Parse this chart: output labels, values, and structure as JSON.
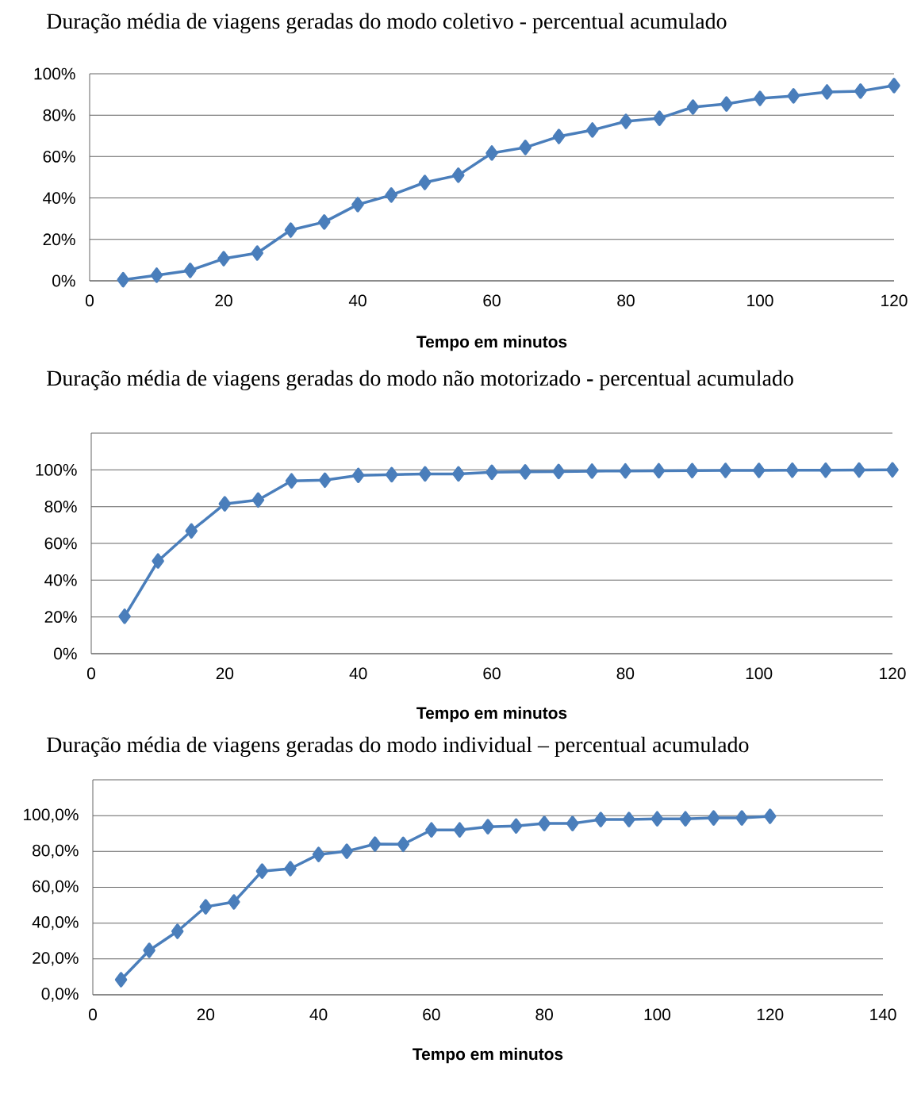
{
  "chart_data": [
    {
      "type": "line",
      "title": "Duração média de viagens geradas do modo coletivo - percentual acumulado",
      "xlabel": "Tempo em minutos",
      "color": "#4a7ebb",
      "marker": "diamond",
      "grid": "y",
      "x": [
        5,
        10,
        15,
        20,
        25,
        30,
        35,
        40,
        45,
        50,
        55,
        60,
        65,
        70,
        75,
        80,
        85,
        90,
        95,
        100,
        105,
        110,
        115,
        120
      ],
      "values": [
        0.5,
        2.7,
        5,
        10.7,
        13.4,
        24.5,
        28.4,
        36.8,
        41.4,
        47.5,
        51,
        61.7,
        64.4,
        69.7,
        72.8,
        77,
        78.5,
        83.9,
        85.4,
        88.1,
        89.3,
        91.2,
        91.6,
        94.3
      ],
      "xlim": [
        0,
        120
      ],
      "xticks": [
        0,
        20,
        40,
        60,
        80,
        100,
        120
      ],
      "ylim": [
        0,
        100
      ],
      "yticks": [
        {
          "value": 0,
          "label": "0%"
        },
        {
          "value": 20,
          "label": "20%"
        },
        {
          "value": 40,
          "label": "40%"
        },
        {
          "value": 60,
          "label": "60%"
        },
        {
          "value": 80,
          "label": "80%"
        },
        {
          "value": 100,
          "label": "100%"
        }
      ]
    },
    {
      "type": "line",
      "title": "Duração média de viagens geradas do modo não motorizado **-** percentual acumulado",
      "xlabel": "Tempo em minutos",
      "color": "#4a7ebb",
      "marker": "diamond",
      "grid": "y",
      "x": [
        5,
        10,
        15,
        20,
        25,
        30,
        35,
        40,
        45,
        50,
        55,
        60,
        65,
        70,
        75,
        80,
        85,
        90,
        95,
        100,
        105,
        110,
        115,
        120
      ],
      "values": [
        20.3,
        50.4,
        66.8,
        81.5,
        83.6,
        94,
        94.4,
        97,
        97.4,
        97.8,
        97.8,
        98.7,
        98.9,
        99.1,
        99.3,
        99.4,
        99.5,
        99.6,
        99.7,
        99.7,
        99.8,
        99.8,
        99.9,
        100
      ],
      "xlim": [
        0,
        120
      ],
      "xticks": [
        0,
        20,
        40,
        60,
        80,
        100,
        120
      ],
      "ylim": [
        0,
        120
      ],
      "yticks": [
        {
          "value": 0,
          "label": "0%"
        },
        {
          "value": 20,
          "label": "20%"
        },
        {
          "value": 40,
          "label": "40%"
        },
        {
          "value": 60,
          "label": "60%"
        },
        {
          "value": 80,
          "label": "80%"
        },
        {
          "value": 100,
          "label": "100%"
        },
        {
          "value": 120,
          "label": null
        }
      ]
    },
    {
      "type": "line",
      "title": "Duração média de viagens geradas do modo individual – percentual acumulado",
      "xlabel": "Tempo em minutos",
      "color": "#4a7ebb",
      "marker": "diamond",
      "grid": "y",
      "x": [
        5,
        10,
        15,
        20,
        25,
        30,
        35,
        40,
        45,
        50,
        55,
        60,
        65,
        70,
        75,
        80,
        85,
        90,
        95,
        100,
        105,
        110,
        115,
        120
      ],
      "values": [
        8.4,
        24.8,
        35.4,
        49.1,
        51.8,
        69,
        70.4,
        78.3,
        80.1,
        84.1,
        84,
        92,
        92,
        93.8,
        94.2,
        95.6,
        95.6,
        97.8,
        97.8,
        98.2,
        98.2,
        98.7,
        98.7,
        99.6
      ],
      "xlim": [
        0,
        140
      ],
      "xticks": [
        0,
        20,
        40,
        60,
        80,
        100,
        120,
        140
      ],
      "ylim": [
        0,
        120
      ],
      "yticks": [
        {
          "value": 0,
          "label": "0,0%"
        },
        {
          "value": 20,
          "label": "20,0%"
        },
        {
          "value": 40,
          "label": "40,0%"
        },
        {
          "value": 60,
          "label": "60,0%"
        },
        {
          "value": 80,
          "label": "80,0%"
        },
        {
          "value": 100,
          "label": "100,0%"
        },
        {
          "value": 120,
          "label": null
        }
      ]
    }
  ]
}
